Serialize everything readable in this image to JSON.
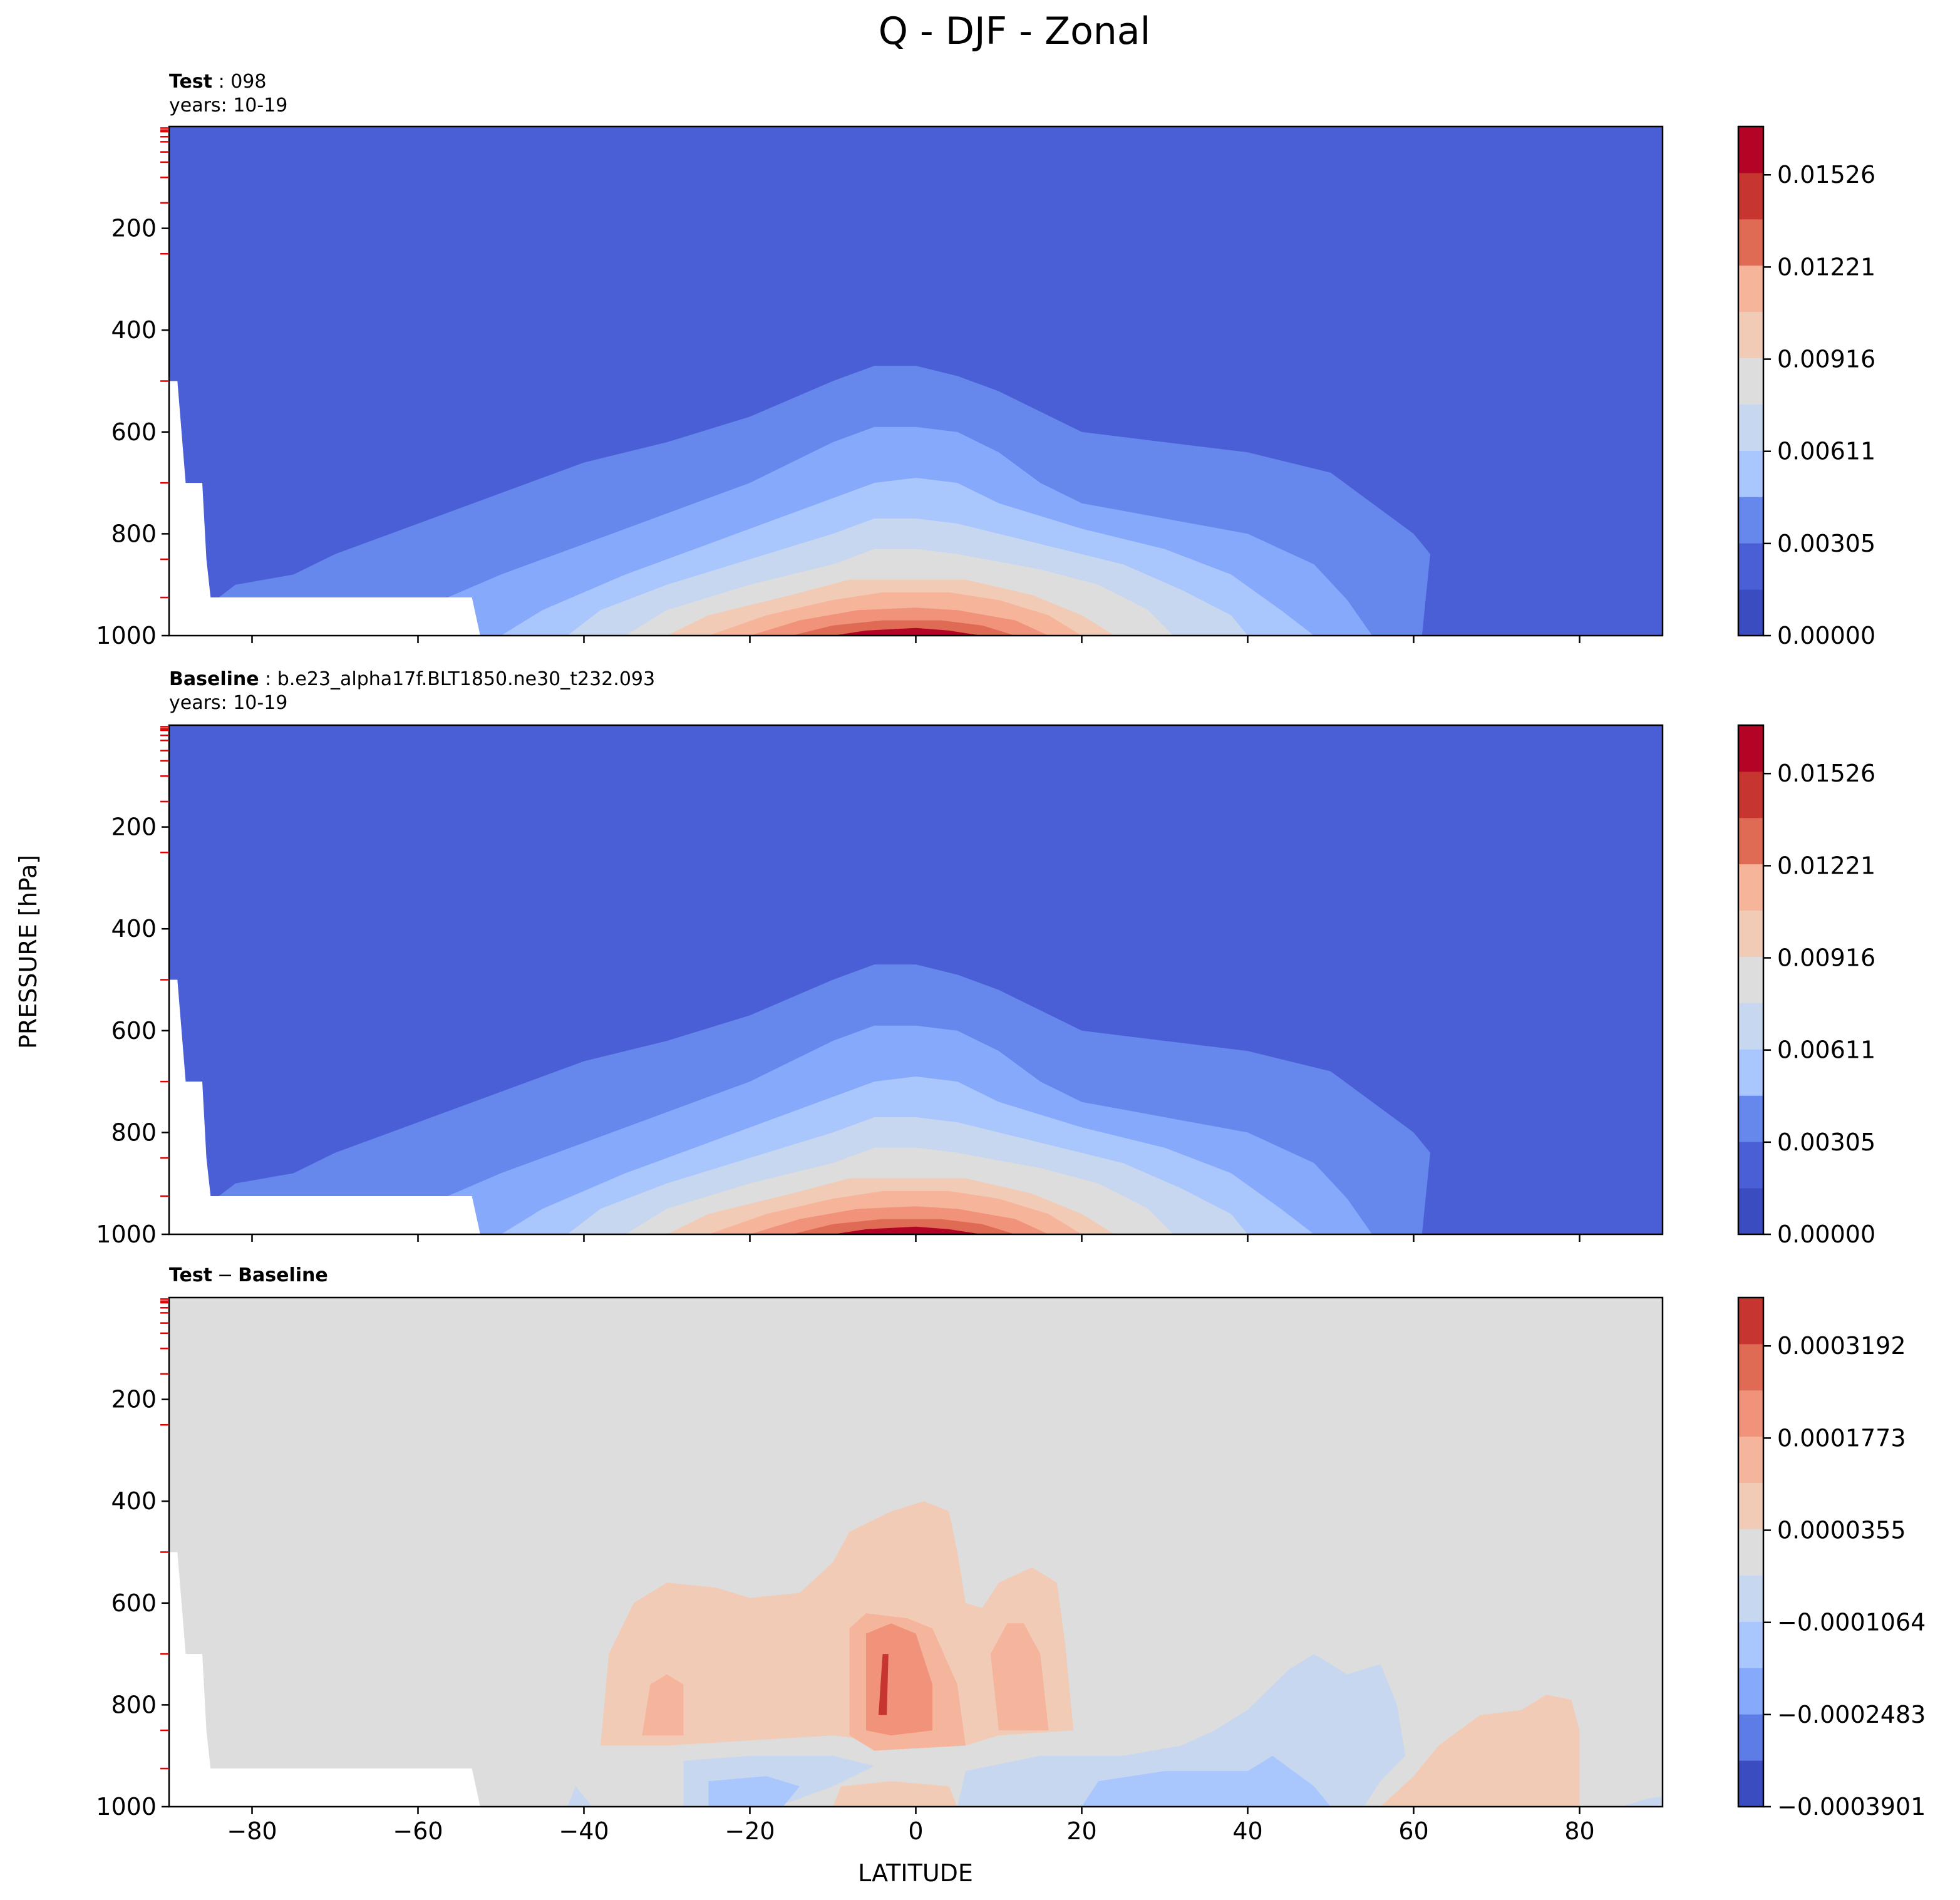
{
  "suptitle": "Q - DJF - Zonal",
  "ylabel": "PRESSURE [hPa]",
  "xlabel": "LATITUDE",
  "palette_blue_to_red": [
    "#3b4cc0",
    "#4a5fd6",
    "#6687ec",
    "#87a9fc",
    "#a9c6fd",
    "#c8d7f0",
    "#dddddd",
    "#f2cbb7",
    "#f6b59b",
    "#f0937a",
    "#e06b55",
    "#c63530",
    "#b40426"
  ],
  "diff_palette": [
    "#3b4cc0",
    "#5d7ce6",
    "#87a9fc",
    "#a9c6fd",
    "#c8d7f0",
    "#dddddd",
    "#f2cbb7",
    "#f5b59c",
    "#f0937a",
    "#e06b55",
    "#c63530"
  ],
  "chart_data": [
    {
      "type": "heatmap",
      "title_bold": "Test",
      "title_rest": "098",
      "subtitle": "years: 10-19",
      "x_range": [
        -90,
        90
      ],
      "y_range": [
        0,
        1000
      ],
      "y_inverted": true,
      "x_ticks": [
        -80,
        -60,
        -40,
        -20,
        0,
        20,
        40,
        60,
        80
      ],
      "y_ticks": [
        200,
        400,
        600,
        800,
        1000
      ],
      "colorbar_ticks": [
        "0.00000",
        "0.00305",
        "0.00611",
        "0.00916",
        "0.01221",
        "0.01526"
      ],
      "colorbar_levels": 11,
      "peak_value": 0.0168,
      "peak_location": {
        "lat": -5,
        "pressure": 1000
      }
    },
    {
      "type": "heatmap",
      "title_bold": "Baseline",
      "title_rest": "b.e23_alpha17f.BLT1850.ne30_t232.093",
      "subtitle": "years: 10-19",
      "x_range": [
        -90,
        90
      ],
      "y_range": [
        0,
        1000
      ],
      "y_inverted": true,
      "x_ticks": [
        -80,
        -60,
        -40,
        -20,
        0,
        20,
        40,
        60,
        80
      ],
      "y_ticks": [
        200,
        400,
        600,
        800,
        1000
      ],
      "colorbar_ticks": [
        "0.00000",
        "0.00305",
        "0.00611",
        "0.00916",
        "0.01221",
        "0.01526"
      ],
      "colorbar_levels": 11,
      "peak_value": 0.0168,
      "peak_location": {
        "lat": -5,
        "pressure": 1000
      }
    },
    {
      "type": "heatmap",
      "title_bold": "Test",
      "title_sep": "−",
      "title_bold2": "Baseline",
      "x_range": [
        -90,
        90
      ],
      "y_range": [
        0,
        1000
      ],
      "y_inverted": true,
      "x_ticks": [
        -80,
        -60,
        -40,
        -20,
        0,
        20,
        40,
        60,
        80
      ],
      "y_ticks": [
        200,
        400,
        600,
        800,
        1000
      ],
      "colorbar_ticks": [
        "−0.0003901",
        "−0.0002483",
        "−0.0001064",
        "0.0000355",
        "0.0001773",
        "0.0003192"
      ],
      "colorbar_levels": 11
    }
  ]
}
